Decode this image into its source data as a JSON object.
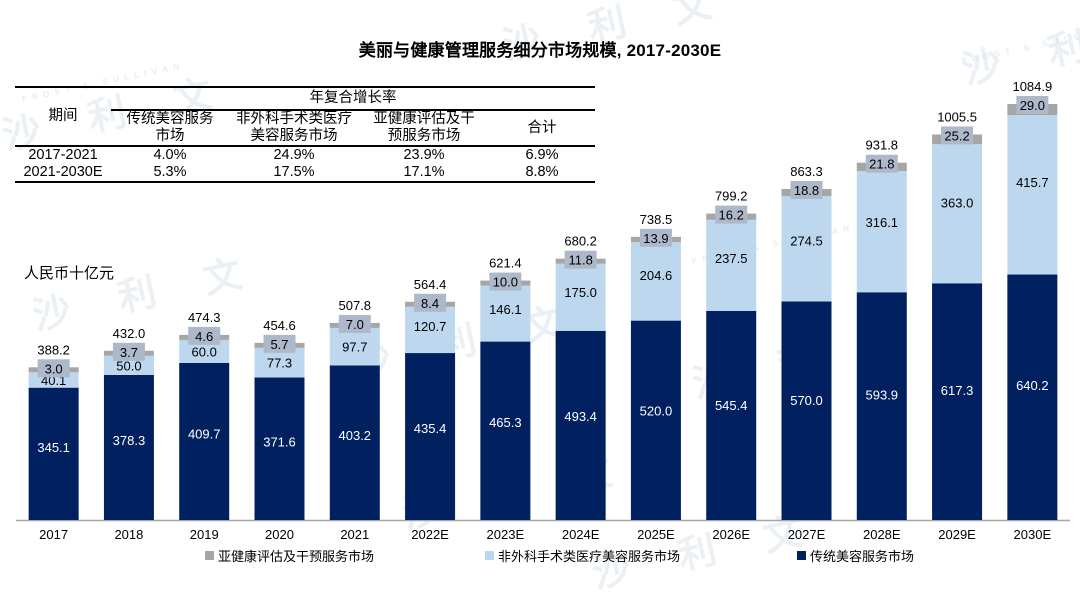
{
  "title": "美丽与健康管理服务细分市场规模, 2017-2030E",
  "unit_label": "人民币十亿元",
  "watermark": {
    "text": "沙 利 文",
    "small_text": "FROST & SULLIVAN"
  },
  "cagr_table": {
    "group_header": "年复合增长率",
    "period_header": "期间",
    "columns": [
      {
        "line1": "传统美容服务",
        "line2": "市场"
      },
      {
        "line1": "非外科手术类医疗",
        "line2": "美容服务市场"
      },
      {
        "line1": "亚健康评估及干",
        "line2": "预服务市场"
      },
      {
        "line1": "合计",
        "line2": ""
      }
    ],
    "rows": [
      {
        "period": "2017-2021",
        "values": [
          "4.0%",
          "24.9%",
          "23.9%",
          "6.9%"
        ]
      },
      {
        "period": "2021-2030E",
        "values": [
          "5.3%",
          "17.5%",
          "17.1%",
          "8.8%"
        ]
      }
    ]
  },
  "colors": {
    "traditional": "#002060",
    "non_surgical": "#BDD7EE",
    "sub_health": "#A6A6A6",
    "label_box": "#ADB9CA"
  },
  "chart_data": {
    "type": "bar",
    "stacked": true,
    "title": "美丽与健康管理服务细分市场规模, 2017-2030E",
    "ylabel": "人民币十亿元",
    "xlabel": "",
    "categories": [
      "2017",
      "2018",
      "2019",
      "2020",
      "2021",
      "2022E",
      "2023E",
      "2024E",
      "2025E",
      "2026E",
      "2027E",
      "2028E",
      "2029E",
      "2030E"
    ],
    "series": [
      {
        "name": "传统美容服务市场",
        "color_key": "traditional",
        "values": [
          345.1,
          378.3,
          409.7,
          371.6,
          403.2,
          435.4,
          465.3,
          493.4,
          520.0,
          545.4,
          570.0,
          593.9,
          617.3,
          640.2
        ]
      },
      {
        "name": "非外科手术类医疗美容服务市场",
        "color_key": "non_surgical",
        "values": [
          40.1,
          50.0,
          60.0,
          77.3,
          97.7,
          120.7,
          146.1,
          175.0,
          204.6,
          237.5,
          274.5,
          316.1,
          363.0,
          415.7
        ]
      },
      {
        "name": "亚健康评估及干预服务市场",
        "color_key": "sub_health",
        "values": [
          3.0,
          3.7,
          4.6,
          5.7,
          7.0,
          8.4,
          10.0,
          11.8,
          13.9,
          16.2,
          18.8,
          21.8,
          25.2,
          29.0
        ]
      }
    ],
    "totals": [
      388.2,
      432.0,
      474.3,
      454.6,
      507.8,
      564.4,
      621.4,
      680.2,
      738.5,
      799.2,
      863.3,
      931.8,
      1005.5,
      1084.9
    ],
    "value_labels": {
      "traditional": [
        "345.1",
        "378.3",
        "409.7",
        "371.6",
        "403.2",
        "435.4",
        "465.3",
        "493.4",
        "520.0",
        "545.4",
        "570.0",
        "593.9",
        "617.3",
        "640.2"
      ],
      "non_surgical": [
        "40.1",
        "50.0",
        "60.0",
        "77.3",
        "97.7",
        "120.7",
        "146.1",
        "175.0",
        "204.6",
        "237.5",
        "274.5",
        "316.1",
        "363.0",
        "415.7"
      ],
      "sub_health": [
        "3.0",
        "3.7",
        "4.6",
        "5.7",
        "7.0",
        "8.4",
        "10.0",
        "11.8",
        "13.9",
        "16.2",
        "18.8",
        "21.8",
        "25.2",
        "29.0"
      ],
      "totals": [
        "388.2",
        "432.0",
        "474.3",
        "454.6",
        "507.8",
        "564.4",
        "621.4",
        "680.2",
        "738.5",
        "799.2",
        "863.3",
        "931.8",
        "1005.5",
        "1084.9"
      ]
    },
    "ylim": [
      0,
      1084.9
    ],
    "grid": false,
    "y_axis_visible": false,
    "legend": {
      "position": "bottom",
      "items": [
        {
          "label": "亚健康评估及干预服务市场",
          "color_key": "sub_health"
        },
        {
          "label": "非外科手术类医疗美容服务市场",
          "color_key": "non_surgical"
        },
        {
          "label": "传统美容服务市场",
          "color_key": "traditional"
        }
      ]
    }
  }
}
